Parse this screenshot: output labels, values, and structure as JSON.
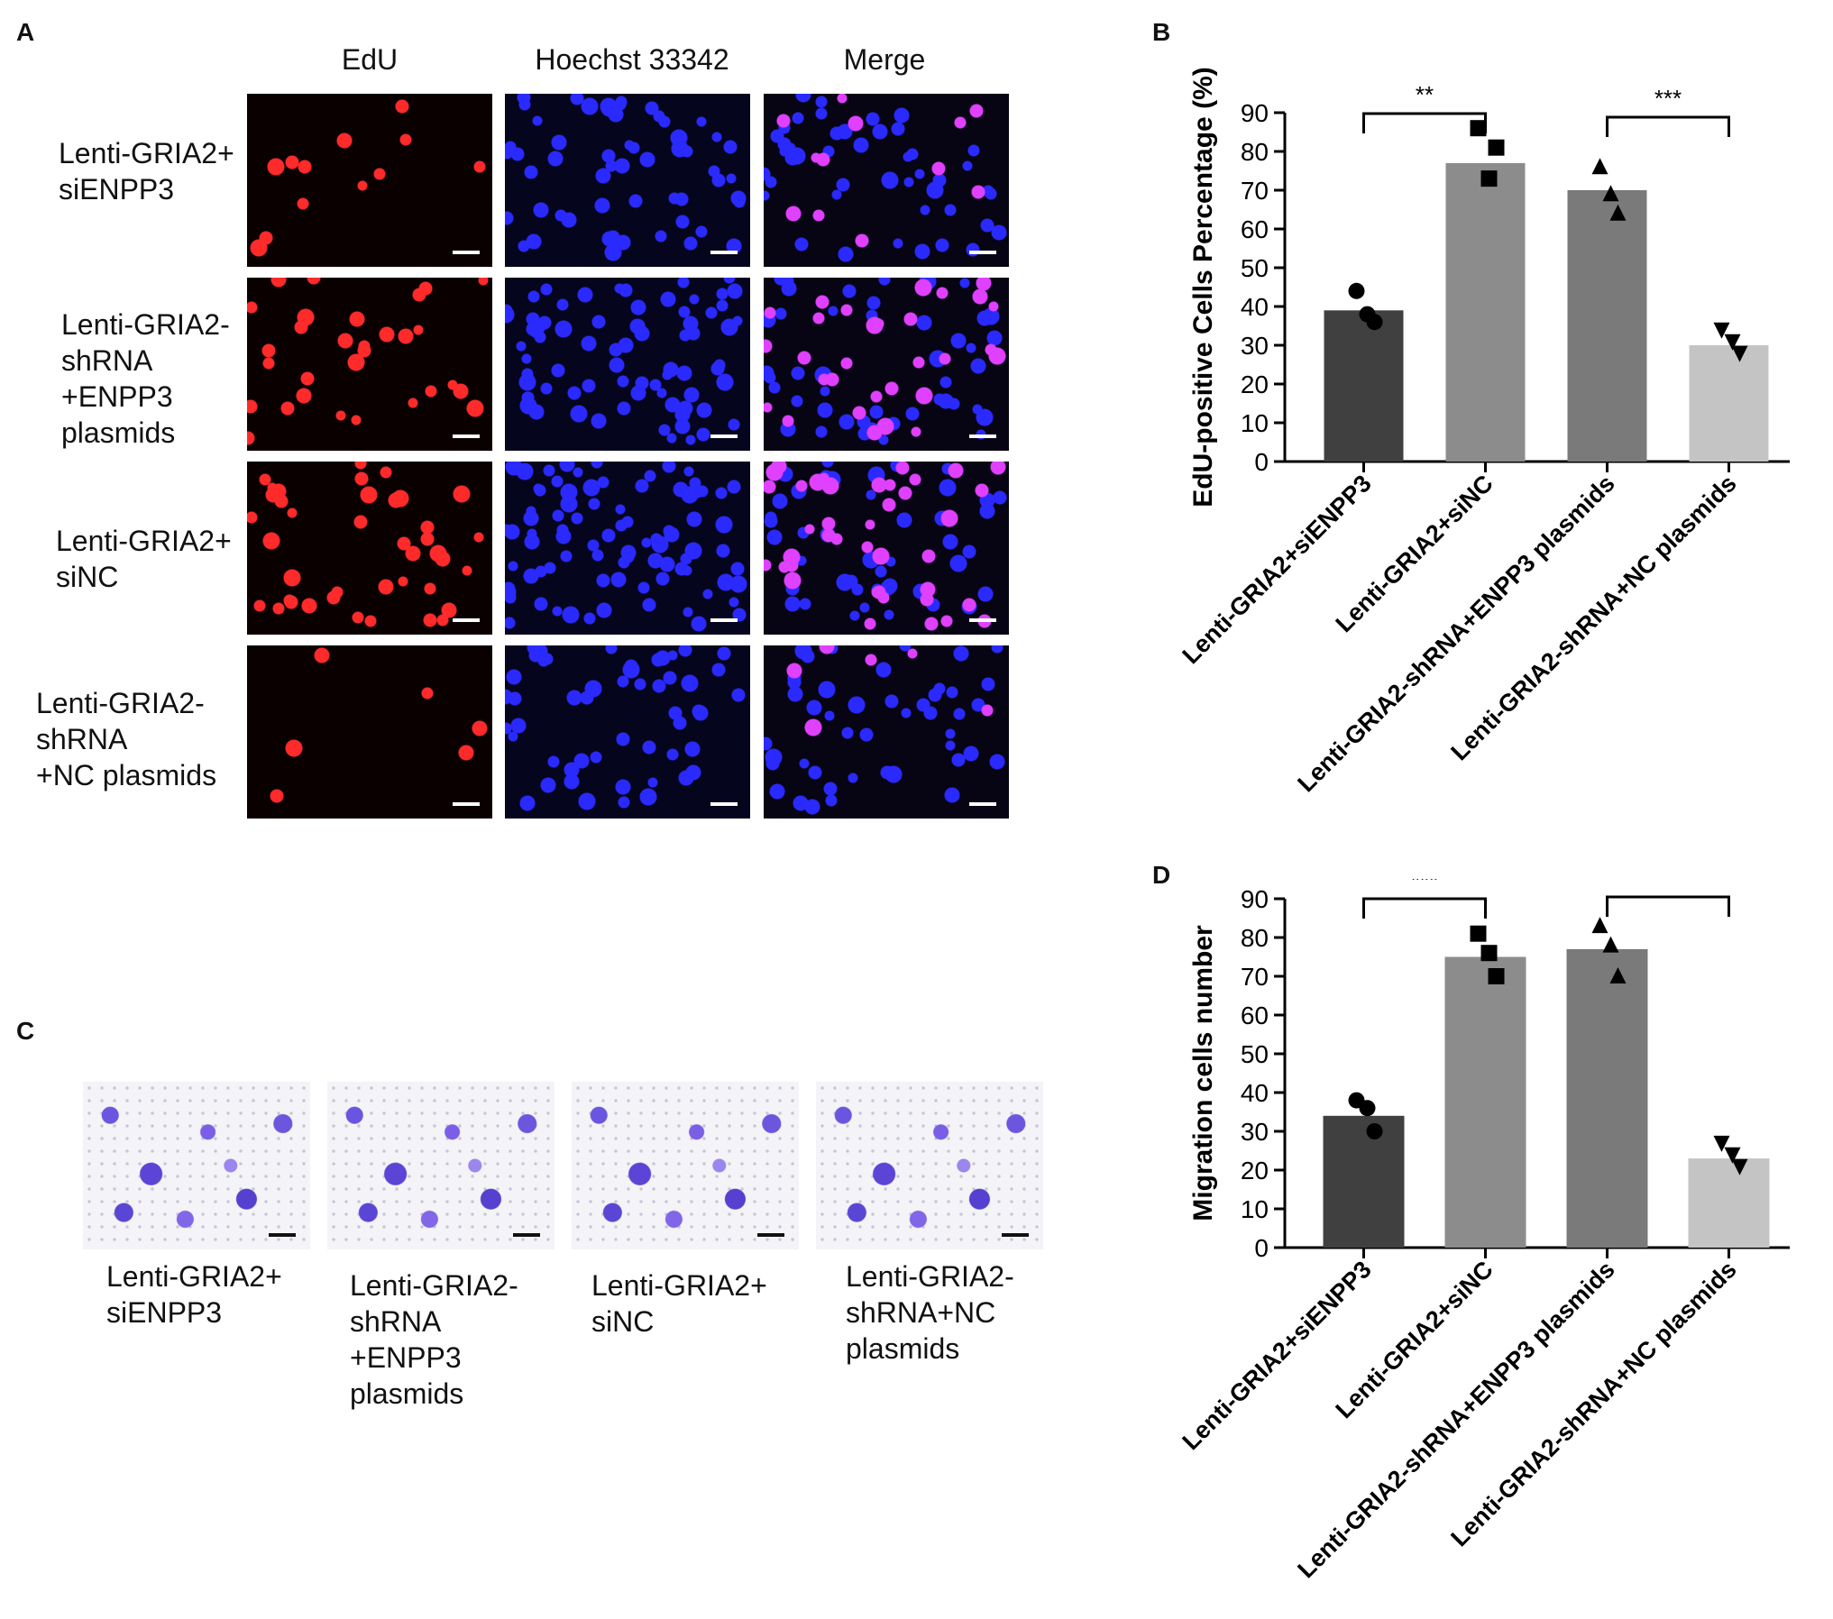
{
  "panelA": {
    "letter": "A",
    "columns": [
      "EdU",
      "Hoechst 33342",
      "Merge"
    ],
    "rows": [
      "Lenti-GRIA2+\nsiENPP3",
      "Lenti-GRIA2-\nshRNA\n+ENPP3\nplasmids",
      "Lenti-GRIA2+\nsiNC",
      "Lenti-GRIA2-\nshRNA\n+NC plasmids"
    ],
    "channel_colors": {
      "EdU": "#ff2a2a",
      "Hoechst 33342": "#2a2aff",
      "Merge": "#e040ff"
    }
  },
  "panelC": {
    "letter": "C",
    "labels": [
      "Lenti-GRIA2+\nsiENPP3",
      "Lenti-GRIA2-\nshRNA\n+ENPP3\nplasmids",
      "Lenti-GRIA2+\nsiNC",
      "Lenti-GRIA2-\nshRNA+NC\nplasmids"
    ]
  },
  "chart_data": [
    {
      "panel": "B",
      "type": "bar",
      "categories": [
        "Lenti-GRIA2+siENPP3",
        "Lenti-GRIA2+siNC",
        "Lenti-GRIA2-shRNA+ENPP3 plasmids",
        "Lenti-GRIA2-shRNA+NC plasmids"
      ],
      "values": [
        39,
        77,
        70,
        30
      ],
      "points": [
        [
          44,
          36,
          38
        ],
        [
          86,
          81,
          73
        ],
        [
          76,
          64,
          69
        ],
        [
          34,
          28,
          31
        ]
      ],
      "markers": [
        "circle",
        "square",
        "triangle-up",
        "triangle-down"
      ],
      "bar_colors": [
        "#404040",
        "#8c8c8c",
        "#7a7a7a",
        "#c4c4c4"
      ],
      "ylabel": "EdU-positive Cells Percentage (%)",
      "xlabel": "",
      "ylim": [
        0,
        90
      ],
      "yticks": [
        0,
        10,
        20,
        30,
        40,
        50,
        60,
        70,
        80,
        90
      ],
      "significance": [
        {
          "from": 0,
          "to": 1,
          "label": "**"
        },
        {
          "from": 2,
          "to": 3,
          "label": "***"
        }
      ]
    },
    {
      "panel": "D",
      "type": "bar",
      "categories": [
        "Lenti-GRIA2+siENPP3",
        "Lenti-GRIA2+siNC",
        "Lenti-GRIA2-shRNA+ENPP3 plasmids",
        "Lenti-GRIA2-shRNA+NC plasmids"
      ],
      "values": [
        34,
        75,
        77,
        23
      ],
      "points": [
        [
          38,
          30,
          36
        ],
        [
          81,
          70,
          76
        ],
        [
          83,
          70,
          78
        ],
        [
          27,
          21,
          24
        ]
      ],
      "markers": [
        "circle",
        "square",
        "triangle-up",
        "triangle-down"
      ],
      "bar_colors": [
        "#404040",
        "#8c8c8c",
        "#7a7a7a",
        "#c4c4c4"
      ],
      "ylabel": "Migration cells number",
      "xlabel": "",
      "ylim": [
        0,
        90
      ],
      "yticks": [
        0,
        10,
        20,
        30,
        40,
        50,
        60,
        70,
        80,
        90
      ],
      "significance": [
        {
          "from": 0,
          "to": 1,
          "label": "***"
        },
        {
          "from": 2,
          "to": 3,
          "label": "***"
        }
      ]
    }
  ]
}
